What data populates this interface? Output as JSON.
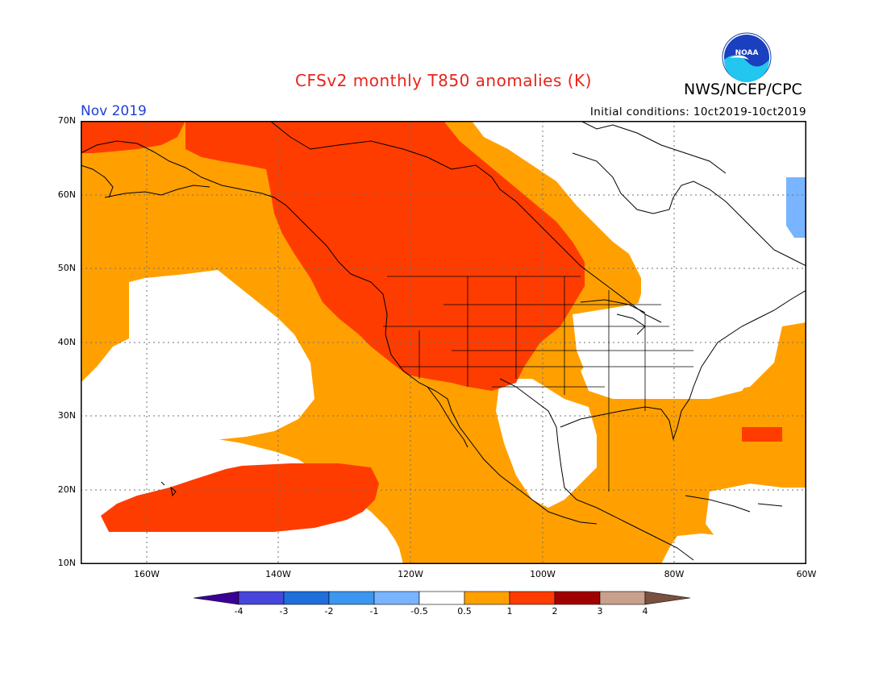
{
  "header": {
    "title": "CFSv2 monthly T850 anomalies (K)",
    "org": "NWS/NCEP/CPC",
    "logo_text": "NOAA",
    "month": "Nov 2019",
    "initial_conditions": "Initial conditions: 10ct2019-10ct2019"
  },
  "map": {
    "lat_labels": [
      "70N",
      "60N",
      "50N",
      "40N",
      "30N",
      "20N",
      "10N"
    ],
    "lon_labels": [
      "160W",
      "140W",
      "120W",
      "100W",
      "80W",
      "60W"
    ],
    "extent": {
      "lon_min": -170,
      "lon_max": -60,
      "lat_min": 10,
      "lat_max": 70
    },
    "fill_colors": {
      "0.5-1": "#ffa000",
      "1-2": "#ff3c00",
      "-1--0.5": "#78b4ff"
    }
  },
  "colorbar": {
    "labels": [
      "-4",
      "-3",
      "-2",
      "-1",
      "-0.5",
      "0.5",
      "1",
      "2",
      "3",
      "4"
    ],
    "colors": [
      "#3a0096",
      "#4646dc",
      "#1e6edc",
      "#3c96f0",
      "#78b4ff",
      "#ffffff",
      "#ffa000",
      "#ff3c00",
      "#a00000",
      "#c8a08c",
      "#7a5040"
    ]
  }
}
